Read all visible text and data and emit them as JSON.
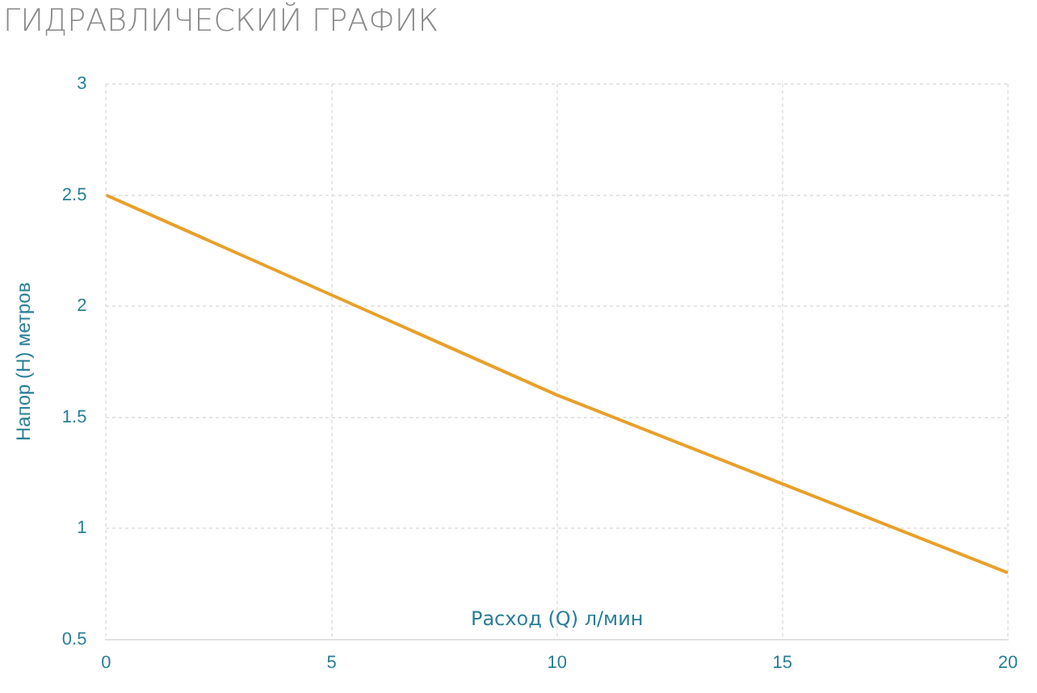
{
  "chart_data": {
    "type": "line",
    "title": "ГИДРАВЛИЧЕСКИЙ ГРАФИК",
    "xlabel": "Расход (Q) л/мин",
    "ylabel": "Напор (H) метров",
    "x": [
      0,
      5,
      10,
      15,
      20
    ],
    "series": [
      {
        "color": "#e8a02a",
        "values": [
          2.5,
          2.05,
          1.6,
          1.2,
          0.8
        ]
      }
    ],
    "xlim": [
      0,
      20
    ],
    "xticks": [
      0,
      5,
      10,
      15,
      20
    ],
    "ylim": [
      0.5,
      3
    ],
    "yticks": [
      0.5,
      1,
      1.5,
      2,
      2.5,
      3
    ],
    "grid": true,
    "marker": "none",
    "line_style": "solid"
  }
}
